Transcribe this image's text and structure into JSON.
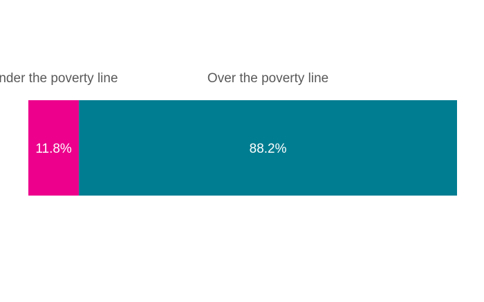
{
  "chart_data": {
    "type": "bar",
    "orientation": "horizontal-stacked",
    "categories": [
      "Under the poverty line",
      "Over the poverty line"
    ],
    "values": [
      11.8,
      88.2
    ],
    "value_labels": [
      "11.8%",
      "88.2%"
    ],
    "colors": [
      "#ec008c",
      "#007d91"
    ],
    "value_range": [
      0,
      100
    ],
    "grid": false,
    "legend": "none",
    "title": "",
    "xlabel": "",
    "ylabel": ""
  }
}
